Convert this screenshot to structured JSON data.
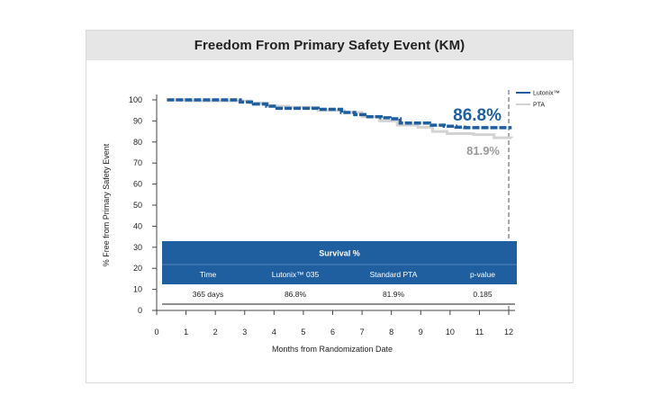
{
  "title": "Freedom From Primary Safety Event (KM)",
  "chart_data": {
    "type": "line",
    "title": "Freedom From Primary Safety Event (KM)",
    "xlabel": "Months from Randomization Date",
    "ylabel": "% Free from Primary Safety Event",
    "xlim": [
      0,
      12
    ],
    "ylim": [
      0,
      100
    ],
    "xticks": [
      "0",
      "1",
      "2",
      "3",
      "4",
      "5",
      "6",
      "7",
      "8",
      "9",
      "10",
      "11",
      "12"
    ],
    "yticks": [
      "0",
      "10",
      "20",
      "30",
      "40",
      "50",
      "60",
      "70",
      "80",
      "90",
      "100"
    ],
    "series": [
      {
        "name": "Lutonix™",
        "color": "#1f5fa0",
        "x": [
          0.35,
          1.0,
          2.3,
          2.85,
          3.3,
          3.75,
          4.1,
          4.9,
          5.5,
          6.3,
          6.75,
          7.1,
          7.65,
          7.95,
          8.3,
          9.3,
          9.8,
          10.2,
          10.5,
          12.1
        ],
        "y": [
          100,
          100,
          100,
          99,
          98,
          97,
          96,
          96,
          95.5,
          94,
          93,
          92,
          91.5,
          91,
          89,
          88,
          87.5,
          87,
          86.8,
          86.8
        ]
      },
      {
        "name": "PTA",
        "color": "#d3d3d3",
        "x": [
          0.6,
          1.0,
          2.5,
          3.2,
          3.8,
          4.5,
          5.5,
          6.4,
          7.0,
          7.6,
          8.2,
          8.9,
          9.4,
          9.9,
          10.8,
          11.5,
          12.1
        ],
        "y": [
          100,
          99.5,
          99.5,
          98.5,
          97,
          96.5,
          95,
          94,
          92,
          90,
          88,
          87,
          85,
          84,
          83.5,
          82,
          81.9
        ]
      }
    ],
    "end_labels": [
      "86.8%",
      "81.9%"
    ],
    "legend": {
      "position": "top-right",
      "entries": [
        "Lutonix™",
        "PTA"
      ]
    },
    "survival_table": {
      "title": "Survival %",
      "columns": [
        "Time",
        "Lutonix™ 035",
        "Standard PTA",
        "p-value"
      ],
      "rows": [
        [
          "365 days",
          "86.8%",
          "81.9%",
          "0.185"
        ]
      ]
    }
  },
  "colors": {
    "lutonix": "#1f5fa0",
    "pta": "#d3d3d3",
    "table_header": "#1f5fa0",
    "header_bg": "#e6e6e6"
  }
}
